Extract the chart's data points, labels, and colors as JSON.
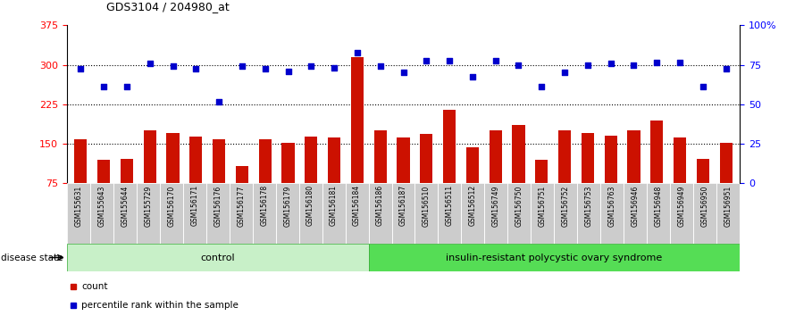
{
  "title": "GDS3104 / 204980_at",
  "samples": [
    "GSM155631",
    "GSM155643",
    "GSM155644",
    "GSM155729",
    "GSM156170",
    "GSM156171",
    "GSM156176",
    "GSM156177",
    "GSM156178",
    "GSM156179",
    "GSM156180",
    "GSM156181",
    "GSM156184",
    "GSM156186",
    "GSM156187",
    "GSM156510",
    "GSM156511",
    "GSM156512",
    "GSM156749",
    "GSM156750",
    "GSM156751",
    "GSM156752",
    "GSM156753",
    "GSM156763",
    "GSM156946",
    "GSM156948",
    "GSM156949",
    "GSM156950",
    "GSM156951"
  ],
  "bar_values": [
    158,
    120,
    121,
    175,
    170,
    163,
    158,
    107,
    158,
    152,
    163,
    162,
    315,
    175,
    162,
    168,
    215,
    143,
    175,
    185,
    120,
    175,
    170,
    165,
    175,
    195,
    162,
    122,
    152
  ],
  "blue_values": [
    292,
    258,
    258,
    303,
    298,
    293,
    230,
    298,
    293,
    287,
    297,
    295,
    323,
    298,
    285,
    308,
    307,
    278,
    308,
    300,
    258,
    285,
    300,
    303,
    300,
    305,
    305,
    258,
    293
  ],
  "control_count": 13,
  "group_labels": [
    "control",
    "insulin-resistant polycystic ovary syndrome"
  ],
  "ctrl_color": "#c8f0c8",
  "ins_color": "#55dd55",
  "disease_state_label": "disease state",
  "bar_color": "#cc1100",
  "blue_color": "#0000cc",
  "y_min": 75,
  "y_max": 375,
  "y_left_ticks": [
    75,
    150,
    225,
    300,
    375
  ],
  "y_right_tick_pos": [
    75,
    150,
    225,
    300,
    375
  ],
  "y_right_tick_labels": [
    "0",
    "25",
    "50",
    "75",
    "100%"
  ],
  "dotted_lines": [
    150,
    225,
    300
  ],
  "xlabel_bg": "#cccccc",
  "legend_items": [
    "count",
    "percentile rank within the sample"
  ]
}
